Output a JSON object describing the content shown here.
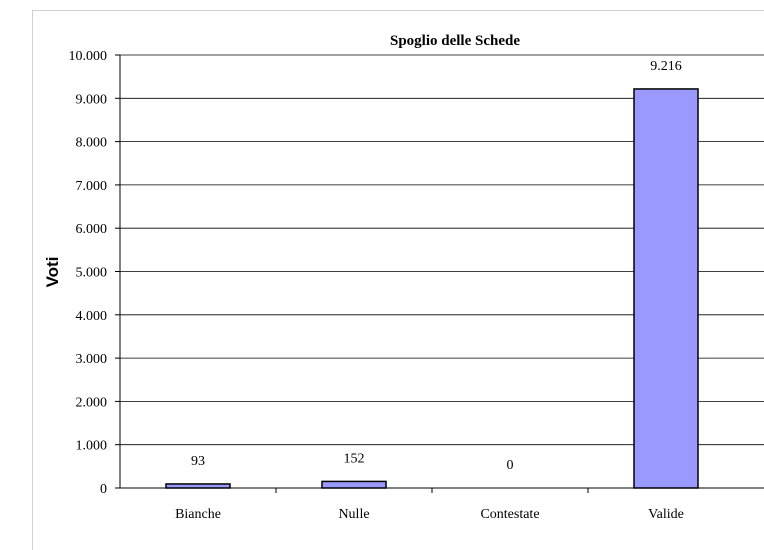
{
  "chart_data": {
    "type": "bar",
    "title": "Spoglio delle Schede",
    "xlabel": "",
    "ylabel": "Voti",
    "categories": [
      "Bianche",
      "Nulle",
      "Contestate",
      "Valide"
    ],
    "values": [
      93,
      152,
      0,
      9216
    ],
    "value_labels": [
      "93",
      "152",
      "0",
      "9.216"
    ],
    "ylim": [
      0,
      10000
    ],
    "y_ticks": [
      0,
      1000,
      2000,
      3000,
      4000,
      5000,
      6000,
      7000,
      8000,
      9000,
      10000
    ],
    "y_tick_labels": [
      "0",
      "1.000",
      "2.000",
      "3.000",
      "4.000",
      "5.000",
      "6.000",
      "7.000",
      "8.000",
      "9.000",
      "10.000"
    ],
    "grid": true,
    "legend": "none",
    "colors": {
      "bar_fill": "#9999ff",
      "bar_stroke": "#000000",
      "grid": "#000000"
    }
  }
}
